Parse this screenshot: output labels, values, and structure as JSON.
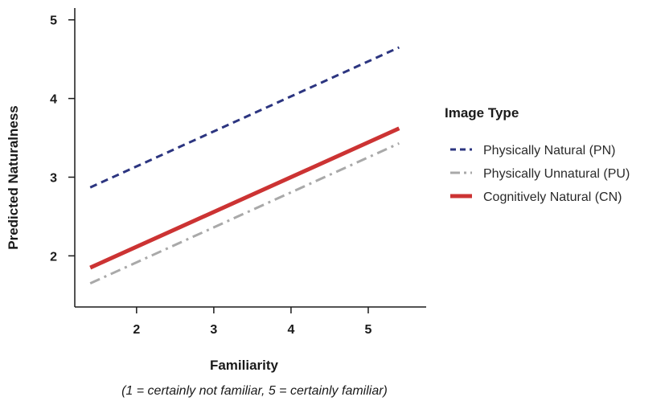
{
  "chart_data": {
    "type": "line",
    "xlabel": "Familiarity",
    "xlabel_note": "(1 = certainly not familiar, 5 = certainly familiar)",
    "ylabel": "Predicted Naturalness",
    "x_ticks": [
      2,
      3,
      4,
      5
    ],
    "y_ticks": [
      2,
      3,
      4,
      5
    ],
    "xlim": [
      1.2,
      5.75
    ],
    "ylim": [
      1.35,
      5.15
    ],
    "grid": false,
    "legend": {
      "title": "Image Type",
      "placement": "right"
    },
    "series": [
      {
        "name": "Physically Natural (PN)",
        "color": "#2c3580",
        "style": "dashed",
        "x": [
          1.4,
          5.4
        ],
        "y": [
          2.87,
          4.65
        ]
      },
      {
        "name": "Physically Unnatural (PU)",
        "color": "#a9a9a9",
        "style": "dash-dot",
        "x": [
          1.4,
          5.4
        ],
        "y": [
          1.65,
          3.43
        ]
      },
      {
        "name": "Cognitively Natural (CN)",
        "color": "#cc3333",
        "style": "solid",
        "x": [
          1.4,
          5.4
        ],
        "y": [
          1.85,
          3.62
        ]
      }
    ]
  }
}
